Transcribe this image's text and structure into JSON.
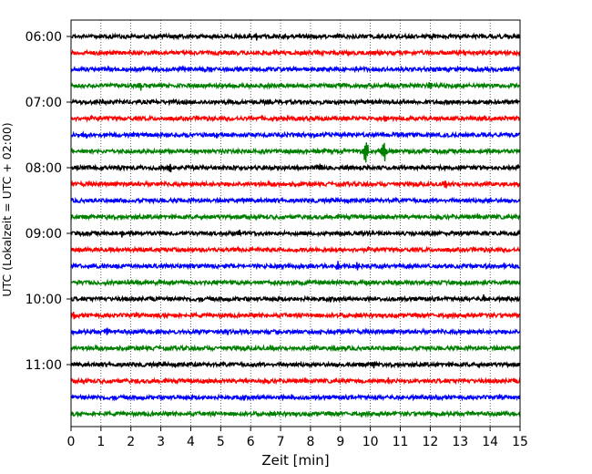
{
  "chart_data": {
    "type": "line",
    "title": "",
    "xlabel": "Zeit  [min]",
    "ylabel": "UTC (Lokalzeit = UTC + 02:00)",
    "xlim": [
      0,
      15
    ],
    "x_ticks": [
      "0",
      "1",
      "2",
      "3",
      "4",
      "5",
      "6",
      "7",
      "8",
      "9",
      "10",
      "11",
      "12",
      "13",
      "14",
      "15"
    ],
    "y_tick_labels": [
      "06:00",
      "07:00",
      "08:00",
      "09:00",
      "10:00",
      "11:00"
    ],
    "grid": "vertical dotted",
    "trace_interval_min": 15,
    "trace_colors": [
      "#000000",
      "#ff0000",
      "#0000ff",
      "#008000"
    ],
    "traces": [
      {
        "start": "06:00",
        "events": [
          {
            "t": 0.9,
            "amp": 0.3
          },
          {
            "t": 6.2,
            "amp": 0.3
          },
          {
            "t": 12.1,
            "amp": 0.25
          }
        ]
      },
      {
        "start": "06:15",
        "events": []
      },
      {
        "start": "06:30",
        "events": [
          {
            "t": 4.7,
            "amp": 0.2
          }
        ]
      },
      {
        "start": "06:45",
        "events": [
          {
            "t": 2.3,
            "amp": 0.4
          },
          {
            "t": 12.0,
            "amp": 0.35
          }
        ]
      },
      {
        "start": "07:00",
        "events": []
      },
      {
        "start": "07:15",
        "events": [
          {
            "t": 10.5,
            "amp": 0.35
          }
        ]
      },
      {
        "start": "07:30",
        "events": [
          {
            "t": 0.5,
            "amp": 0.3
          },
          {
            "t": 4.9,
            "amp": 0.2
          }
        ]
      },
      {
        "start": "07:45",
        "events": [
          {
            "t": 9.85,
            "amp": 1.4
          },
          {
            "t": 10.45,
            "amp": 1.35
          }
        ]
      },
      {
        "start": "08:00",
        "events": [
          {
            "t": 3.3,
            "amp": 0.35
          },
          {
            "t": 8.3,
            "amp": 0.3
          },
          {
            "t": 11.2,
            "amp": 0.3
          },
          {
            "t": 14.2,
            "amp": 0.25
          }
        ]
      },
      {
        "start": "08:15",
        "events": [
          {
            "t": 12.5,
            "amp": 0.35
          }
        ]
      },
      {
        "start": "08:30",
        "events": [
          {
            "t": 14.0,
            "amp": 0.3
          }
        ]
      },
      {
        "start": "08:45",
        "events": [
          {
            "t": 1.2,
            "amp": 0.25
          }
        ]
      },
      {
        "start": "09:00",
        "events": [
          {
            "t": 1.7,
            "amp": 0.3
          },
          {
            "t": 5.6,
            "amp": 0.25
          }
        ]
      },
      {
        "start": "09:15",
        "events": [
          {
            "t": 3.1,
            "amp": 0.2
          }
        ]
      },
      {
        "start": "09:30",
        "events": [
          {
            "t": 8.95,
            "amp": 0.55
          },
          {
            "t": 9.55,
            "amp": 0.45
          },
          {
            "t": 14.5,
            "amp": 0.3
          }
        ]
      },
      {
        "start": "09:45",
        "events": [
          {
            "t": 1.9,
            "amp": 0.3
          },
          {
            "t": 6.8,
            "amp": 0.2
          }
        ]
      },
      {
        "start": "10:00",
        "events": [
          {
            "t": 13.8,
            "amp": 0.35
          }
        ]
      },
      {
        "start": "10:15",
        "events": [
          {
            "t": 0.1,
            "amp": 0.3
          }
        ]
      },
      {
        "start": "10:30",
        "events": [
          {
            "t": 1.2,
            "amp": 0.25
          }
        ]
      },
      {
        "start": "10:45",
        "events": [
          {
            "t": 8.8,
            "amp": 0.2
          }
        ]
      },
      {
        "start": "11:00",
        "events": [
          {
            "t": 10.1,
            "amp": 0.3
          }
        ]
      },
      {
        "start": "11:15",
        "events": [
          {
            "t": 10.6,
            "amp": 0.3
          }
        ]
      },
      {
        "start": "11:30",
        "events": [
          {
            "t": 7.4,
            "amp": 0.25
          }
        ]
      },
      {
        "start": "11:45",
        "events": [
          {
            "t": 0.6,
            "amp": 0.2
          }
        ]
      }
    ]
  }
}
